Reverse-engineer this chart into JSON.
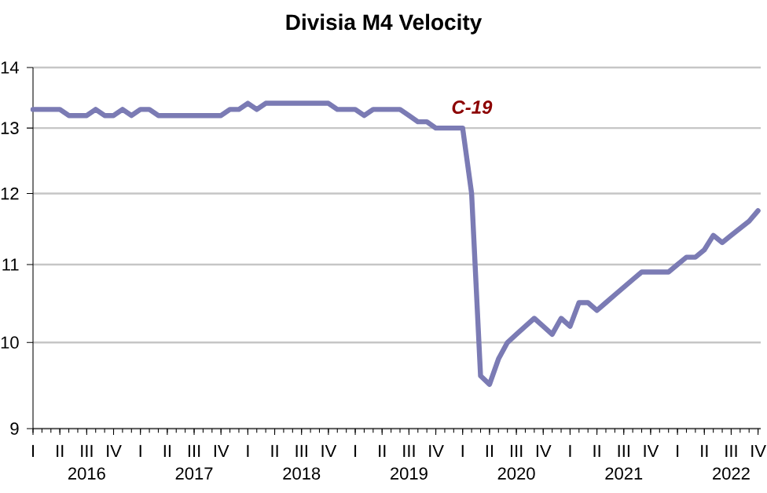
{
  "chart_data": {
    "type": "line",
    "title": "Divisia M4 Velocity",
    "categories": [
      "I",
      null,
      null,
      "II",
      null,
      null,
      "III",
      null,
      null,
      "IV",
      null,
      null,
      "I",
      null,
      null,
      "II",
      null,
      null,
      "III",
      null,
      null,
      "IV",
      null,
      null,
      "I",
      null,
      null,
      "II",
      null,
      null,
      "III",
      null,
      null,
      "IV",
      null,
      null,
      "I",
      null,
      null,
      "II",
      null,
      null,
      "III",
      null,
      null,
      "IV",
      null,
      null,
      "I",
      null,
      null,
      "II",
      null,
      null,
      "III",
      null,
      null,
      "IV",
      null,
      null,
      "I",
      null,
      null,
      "II",
      null,
      null,
      "III",
      null,
      null,
      "IV",
      null,
      null,
      "I",
      null,
      null,
      "II",
      null,
      null,
      "III",
      null,
      null,
      "IV"
    ],
    "series": [
      {
        "color": "#7b7bb4",
        "values": [
          13.3,
          13.3,
          13.3,
          13.3,
          13.2,
          13.2,
          13.2,
          13.3,
          13.2,
          13.2,
          13.3,
          13.2,
          13.3,
          13.3,
          13.2,
          13.2,
          13.2,
          13.2,
          13.2,
          13.2,
          13.2,
          13.2,
          13.3,
          13.3,
          13.4,
          13.3,
          13.4,
          13.4,
          13.4,
          13.4,
          13.4,
          13.4,
          13.4,
          13.4,
          13.3,
          13.3,
          13.3,
          13.2,
          13.3,
          13.3,
          13.3,
          13.3,
          13.2,
          13.1,
          13.1,
          13.0,
          13.0,
          13.0,
          13.0,
          12.0,
          9.6,
          9.5,
          9.8,
          10.0,
          10.1,
          10.2,
          10.3,
          10.2,
          10.1,
          10.3,
          10.2,
          10.5,
          10.5,
          10.4,
          10.5,
          10.6,
          10.7,
          10.8,
          10.9,
          10.9,
          10.9,
          10.9,
          11.0,
          11.1,
          11.1,
          11.2,
          11.4,
          11.3,
          11.4,
          11.5,
          11.6,
          11.75
        ]
      }
    ],
    "ylim": [
      9,
      14
    ],
    "yticks": [
      9,
      10,
      11,
      12,
      13,
      14
    ],
    "log": "y",
    "grid": "y",
    "line_style": "solid",
    "annotations": [
      "C-19",
      "2016",
      "2017",
      "2018",
      "2019",
      "2020",
      "2021",
      "2022"
    ]
  }
}
